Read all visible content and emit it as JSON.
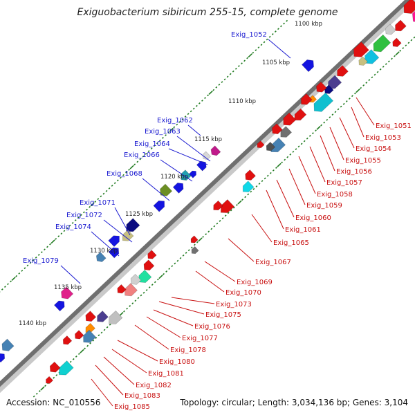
{
  "title": "Exiguobacterium sibiricum 255-15, complete genome",
  "footer": {
    "accession": "Accession: NC_010556",
    "topology": "Topology: circular; Length: 3,034,136 bp; Genes: 3,104"
  },
  "kbp_ticks": [
    "1100 kbp",
    "1105 kbp",
    "1110 kbp",
    "1115 kbp",
    "1120 kbp",
    "1125 kbp",
    "1130 kbp",
    "1135 kbp",
    "1140 kbp"
  ],
  "genes_plus": [
    "Exig_1052",
    "Exig_1062",
    "Exig_1063",
    "Exig_1064",
    "Exig_1066",
    "Exig_1068",
    "Exig_1071",
    "Exig_1072",
    "Exig_1074",
    "Exig_1079"
  ],
  "genes_minus": [
    "Exig_1051",
    "Exig_1053",
    "Exig_1054",
    "Exig_1055",
    "Exig_1056",
    "Exig_1057",
    "Exig_1058",
    "Exig_1059",
    "Exig_1060",
    "Exig_1061",
    "Exig_1065",
    "Exig_1067",
    "Exig_1069",
    "Exig_1070",
    "Exig_1073",
    "Exig_1075",
    "Exig_1076",
    "Exig_1077",
    "Exig_1078",
    "Exig_1080",
    "Exig_1081",
    "Exig_1082",
    "Exig_1083",
    "Exig_1085"
  ],
  "colors": {
    "plus_label": "#1a1ad0",
    "minus_label": "#c81010",
    "backbone": "#6e6e6e",
    "tick": "#1f7a1f",
    "plus_gene": "#1010e0",
    "minus_gene": "#e01010"
  }
}
